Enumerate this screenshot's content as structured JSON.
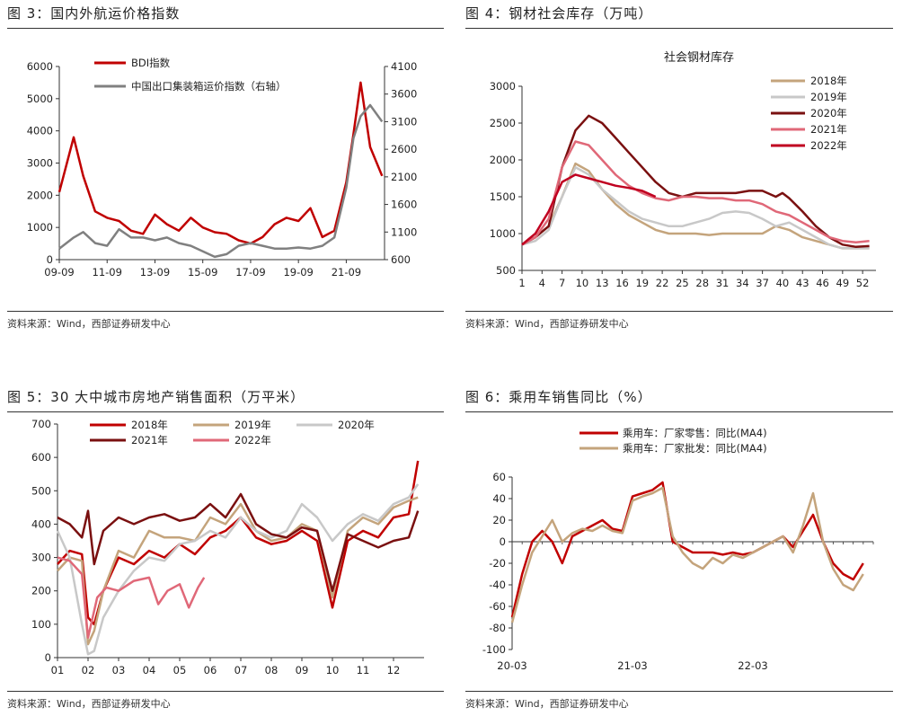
{
  "panels": [
    {
      "title": "图 3：国内外航运价格指数",
      "source": "资料来源：Wind，西部证券研发中心"
    },
    {
      "title": "图 4：钢材社会库存（万吨）",
      "source": "资料来源：Wind，西部证券研发中心"
    },
    {
      "title": "图 5：30 大中城市房地产销售面积（万平米）",
      "source": "资料来源：Wind，西部证券研发中心"
    },
    {
      "title": "图 6：乘用车销售同比（%）",
      "source": "资料来源：Wind，西部证券研发中心"
    }
  ],
  "chart_data": [
    {
      "type": "line",
      "title": "",
      "x_tick_labels": [
        "09-09",
        "11-09",
        "13-09",
        "15-09",
        "17-09",
        "19-09",
        "21-09"
      ],
      "x": [
        0,
        0.6,
        1,
        1.5,
        2,
        2.5,
        3,
        3.5,
        4,
        4.5,
        5,
        5.5,
        6,
        6.5,
        7,
        7.5,
        8,
        8.5,
        9,
        9.5,
        10,
        10.5,
        11,
        11.5,
        12,
        12.3,
        12.6,
        13,
        13.5
      ],
      "ylim": [
        0,
        6000
      ],
      "y_ticks": [
        0,
        1000,
        2000,
        3000,
        4000,
        5000,
        6000
      ],
      "y2lim": [
        600,
        4100
      ],
      "y2_ticks": [
        600,
        1100,
        1600,
        2100,
        2600,
        3100,
        3600,
        4100
      ],
      "y2label": "(右轴)",
      "series": [
        {
          "name": "BDI指数",
          "color": "#c00000",
          "axis": "left",
          "values": [
            2100,
            3800,
            2600,
            1500,
            1300,
            1200,
            900,
            800,
            1400,
            1100,
            900,
            1300,
            1000,
            850,
            800,
            600,
            500,
            700,
            1100,
            1300,
            1200,
            1600,
            700,
            900,
            2400,
            3900,
            5500,
            3500,
            2600
          ]
        },
        {
          "name": "中国出口集装箱运价指数（右轴）",
          "color": "#808080",
          "axis": "right",
          "values": [
            800,
            1000,
            1100,
            900,
            850,
            1150,
            1000,
            1000,
            950,
            1000,
            900,
            850,
            750,
            650,
            700,
            850,
            900,
            850,
            800,
            800,
            820,
            800,
            850,
            1000,
            1900,
            2800,
            3200,
            3400,
            3100
          ]
        }
      ]
    },
    {
      "type": "line",
      "title": "社会钢材库存",
      "x_tick_labels": [
        "1",
        "4",
        "7",
        "10",
        "13",
        "16",
        "19",
        "22",
        "25",
        "28",
        "31",
        "34",
        "37",
        "40",
        "43",
        "46",
        "49",
        "52"
      ],
      "ylim": [
        500,
        3000
      ],
      "y_ticks": [
        500,
        1000,
        1500,
        2000,
        2500,
        3000
      ],
      "series": [
        {
          "name": "2018年",
          "color": "#c4a47c",
          "x": [
            1,
            3,
            5,
            7,
            9,
            11,
            13,
            15,
            17,
            19,
            21,
            23,
            25,
            27,
            29,
            31,
            33,
            35,
            37,
            39,
            41,
            43,
            45,
            47,
            49,
            51,
            53
          ],
          "values": [
            850,
            950,
            1100,
            1500,
            1950,
            1850,
            1600,
            1400,
            1250,
            1150,
            1050,
            1000,
            1000,
            1000,
            980,
            1000,
            1000,
            1000,
            1000,
            1100,
            1050,
            950,
            900,
            850,
            800,
            800,
            800
          ]
        },
        {
          "name": "2019年",
          "color": "#c8c8c8",
          "x": [
            1,
            3,
            5,
            7,
            9,
            11,
            13,
            15,
            17,
            19,
            21,
            23,
            25,
            27,
            29,
            31,
            33,
            35,
            37,
            39,
            41,
            43,
            45,
            47,
            49,
            51,
            53
          ],
          "values": [
            850,
            900,
            1050,
            1500,
            1900,
            1800,
            1600,
            1450,
            1300,
            1200,
            1150,
            1100,
            1100,
            1150,
            1200,
            1280,
            1300,
            1280,
            1200,
            1100,
            1150,
            1050,
            950,
            850,
            800,
            800,
            800
          ]
        },
        {
          "name": "2020年",
          "color": "#7a1010",
          "x": [
            1,
            3,
            5,
            7,
            9,
            11,
            13,
            15,
            17,
            19,
            21,
            23,
            25,
            27,
            29,
            31,
            33,
            35,
            37,
            39,
            40,
            41,
            43,
            45,
            47,
            49,
            51,
            53
          ],
          "values": [
            850,
            950,
            1100,
            1900,
            2400,
            2600,
            2500,
            2300,
            2100,
            1900,
            1700,
            1550,
            1500,
            1550,
            1550,
            1550,
            1550,
            1580,
            1580,
            1500,
            1550,
            1480,
            1300,
            1100,
            950,
            850,
            820,
            830
          ]
        },
        {
          "name": "2021年",
          "color": "#e06878",
          "x": [
            1,
            3,
            5,
            7,
            9,
            11,
            13,
            15,
            17,
            19,
            21,
            23,
            25,
            27,
            29,
            31,
            33,
            35,
            37,
            39,
            41,
            43,
            45,
            47,
            49,
            51,
            53
          ],
          "values": [
            850,
            950,
            1200,
            1900,
            2250,
            2200,
            2000,
            1800,
            1650,
            1550,
            1480,
            1450,
            1500,
            1500,
            1480,
            1480,
            1450,
            1450,
            1400,
            1300,
            1250,
            1150,
            1050,
            950,
            900,
            880,
            900
          ]
        },
        {
          "name": "2022年",
          "color": "#c00020",
          "x": [
            1,
            3,
            5,
            7,
            9,
            11,
            13,
            15,
            17,
            19,
            21
          ],
          "values": [
            850,
            1000,
            1300,
            1700,
            1800,
            1750,
            1700,
            1650,
            1620,
            1580,
            1500
          ]
        }
      ]
    },
    {
      "type": "line",
      "title": "",
      "x_tick_labels": [
        "01",
        "02",
        "03",
        "04",
        "05",
        "06",
        "07",
        "08",
        "09",
        "10",
        "11",
        "12"
      ],
      "ylim": [
        0,
        700
      ],
      "y_ticks": [
        0,
        100,
        200,
        300,
        400,
        500,
        600,
        700
      ],
      "x": [
        1,
        1.4,
        1.8,
        2,
        2.2,
        2.5,
        3,
        3.5,
        4,
        4.5,
        5,
        5.5,
        6,
        6.5,
        7,
        7.5,
        8,
        8.5,
        9,
        9.5,
        10,
        10.5,
        11,
        11.5,
        12,
        12.5,
        12.8
      ],
      "series": [
        {
          "name": "2018年",
          "color": "#c00000",
          "values": [
            280,
            320,
            310,
            120,
            100,
            200,
            300,
            280,
            320,
            300,
            340,
            310,
            360,
            380,
            420,
            360,
            340,
            350,
            380,
            350,
            150,
            350,
            380,
            360,
            420,
            430,
            590
          ]
        },
        {
          "name": "2019年",
          "color": "#c4a47c",
          "values": [
            260,
            300,
            290,
            40,
            80,
            200,
            320,
            300,
            380,
            360,
            360,
            350,
            420,
            400,
            460,
            380,
            350,
            360,
            400,
            380,
            180,
            380,
            420,
            400,
            450,
            470,
            480
          ]
        },
        {
          "name": "2020年",
          "color": "#c8c8c8",
          "values": [
            380,
            300,
            100,
            10,
            20,
            120,
            200,
            260,
            300,
            290,
            340,
            350,
            380,
            360,
            420,
            380,
            360,
            380,
            460,
            420,
            350,
            400,
            430,
            410,
            460,
            480,
            520
          ]
        },
        {
          "name": "2021年",
          "color": "#7a1010",
          "values": [
            420,
            400,
            360,
            440,
            280,
            380,
            420,
            400,
            420,
            430,
            410,
            420,
            460,
            420,
            490,
            400,
            370,
            360,
            390,
            380,
            200,
            370,
            350,
            330,
            350,
            360,
            440
          ]
        },
        {
          "name": "2022年",
          "color": "#e06878",
          "x": [
            1,
            1.4,
            1.8,
            2,
            2.3,
            2.6,
            3,
            3.5,
            4,
            4.3,
            4.6,
            5,
            5.3,
            5.6,
            5.8
          ],
          "values": [
            300,
            290,
            250,
            60,
            180,
            210,
            200,
            230,
            240,
            160,
            200,
            220,
            150,
            210,
            240
          ]
        }
      ]
    },
    {
      "type": "line",
      "title": "",
      "x_tick_labels": [
        "20-03",
        "21-03",
        "22-03"
      ],
      "ylim": [
        -100,
        60
      ],
      "y_ticks": [
        -100,
        -80,
        -60,
        -40,
        -20,
        0,
        20,
        40,
        60
      ],
      "x": [
        0,
        1,
        2,
        3,
        4,
        5,
        6,
        7,
        8,
        9,
        10,
        11,
        12,
        13,
        14,
        15,
        16,
        17,
        18,
        19,
        20,
        21,
        22,
        23,
        24,
        25,
        26,
        27,
        28,
        29,
        30,
        31,
        32,
        33,
        34,
        35
      ],
      "series": [
        {
          "name": "乘用车：厂家零售：同比(MA4)",
          "color": "#c00000",
          "values": [
            -70,
            -30,
            0,
            10,
            0,
            -20,
            5,
            10,
            15,
            20,
            12,
            10,
            42,
            45,
            48,
            55,
            0,
            -5,
            -10,
            -10,
            -10,
            -12,
            -10,
            -12,
            -10,
            -5,
            0,
            5,
            -5,
            10,
            25,
            0,
            -20,
            -30,
            -35,
            -20
          ]
        },
        {
          "name": "乘用车：厂家批发：同比(MA4)",
          "color": "#c4a47c",
          "values": [
            -75,
            -40,
            -10,
            5,
            20,
            0,
            8,
            12,
            10,
            15,
            10,
            8,
            38,
            42,
            45,
            50,
            5,
            -10,
            -20,
            -25,
            -15,
            -20,
            -12,
            -15,
            -10,
            -5,
            0,
            5,
            -10,
            15,
            45,
            0,
            -25,
            -40,
            -45,
            -30
          ]
        }
      ]
    }
  ]
}
